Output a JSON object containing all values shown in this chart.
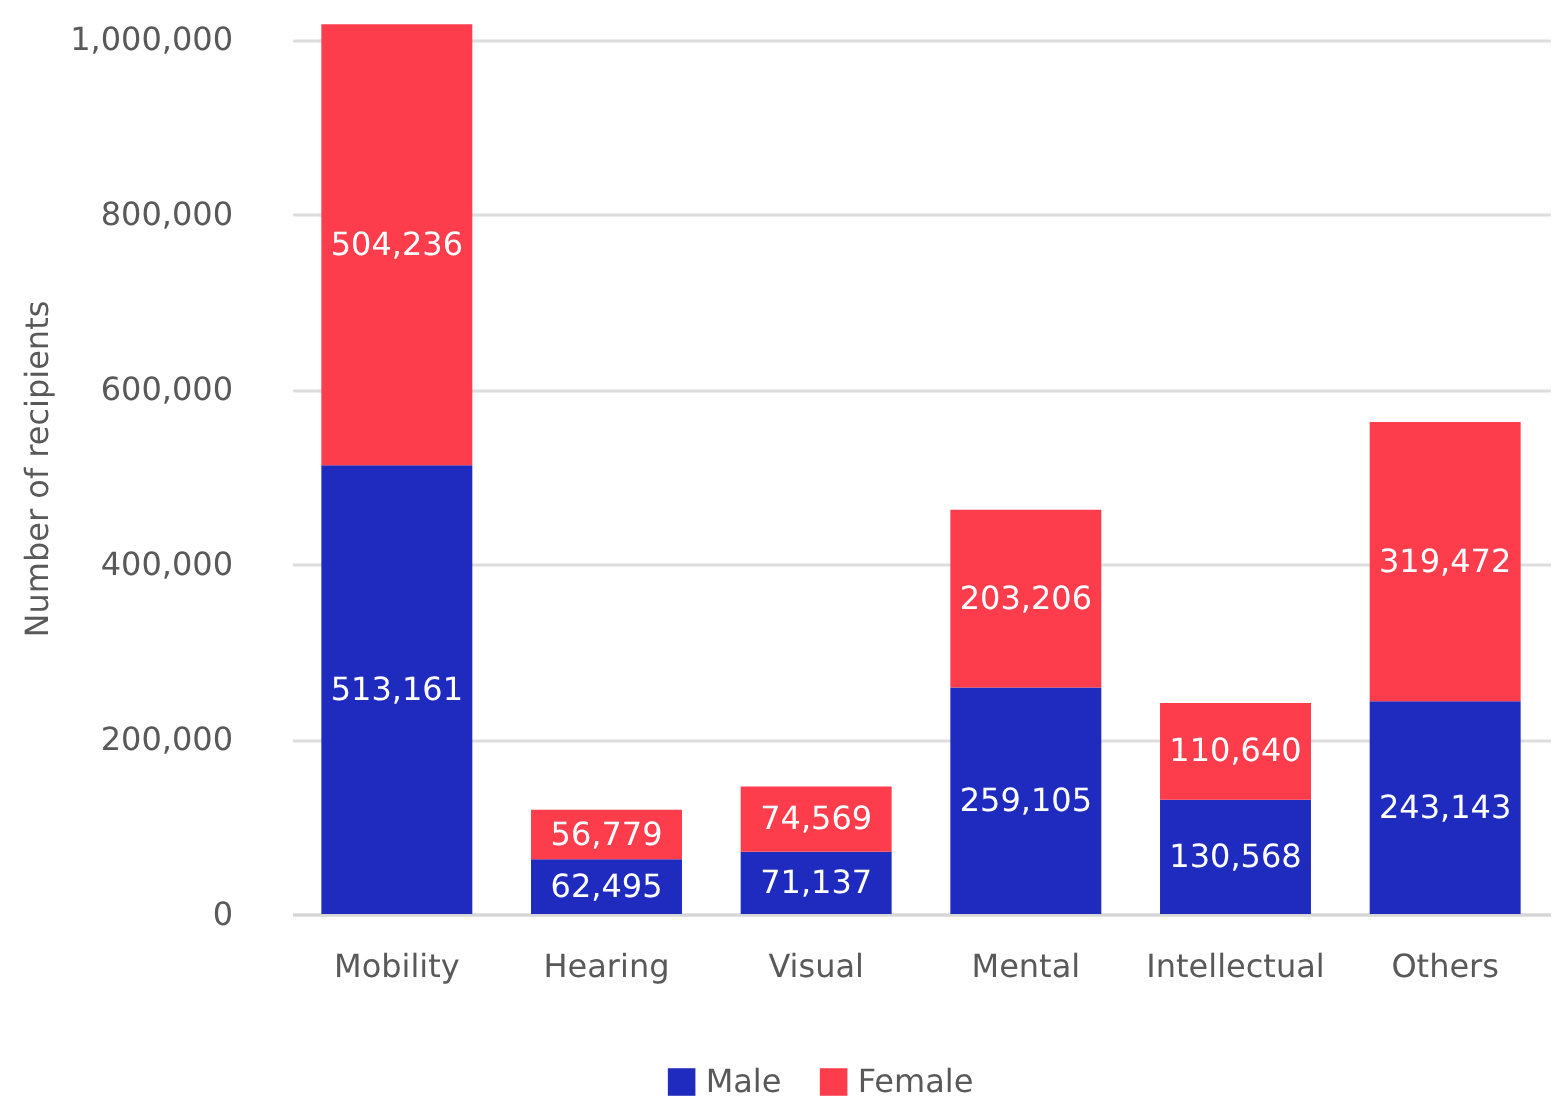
{
  "chart_data": {
    "type": "bar",
    "stacked": true,
    "ylabel": "Number of recipients",
    "categories": [
      "Mobility",
      "Hearing",
      "Visual",
      "Mental",
      "Intellectual",
      "Others"
    ],
    "series": [
      {
        "name": "Male",
        "color": "#1e2bbe",
        "values": [
          513161,
          62495,
          71137,
          259105,
          130568,
          243143
        ],
        "value_labels": [
          "513,161",
          "62,495",
          "71,137",
          "259,105",
          "130,568",
          "243,143"
        ]
      },
      {
        "name": "Female",
        "color": "#fd3c4c",
        "values": [
          504236,
          56779,
          74569,
          203206,
          110640,
          319472
        ],
        "value_labels": [
          "504,236",
          "56,779",
          "74,569",
          "203,206",
          "110,640",
          "319,472"
        ]
      }
    ],
    "ylim": [
      0,
      1020000
    ],
    "yticks": [
      0,
      {
        "value": 200000,
        "label": "200,000"
      },
      {
        "value": 400000,
        "label": "400,000"
      },
      {
        "value": 600000,
        "label": "600,000"
      },
      {
        "value": 800000,
        "label": "800,000"
      },
      {
        "value": 1000000,
        "label": "1,000,000"
      }
    ],
    "grid": "y",
    "legend": "bottom"
  }
}
